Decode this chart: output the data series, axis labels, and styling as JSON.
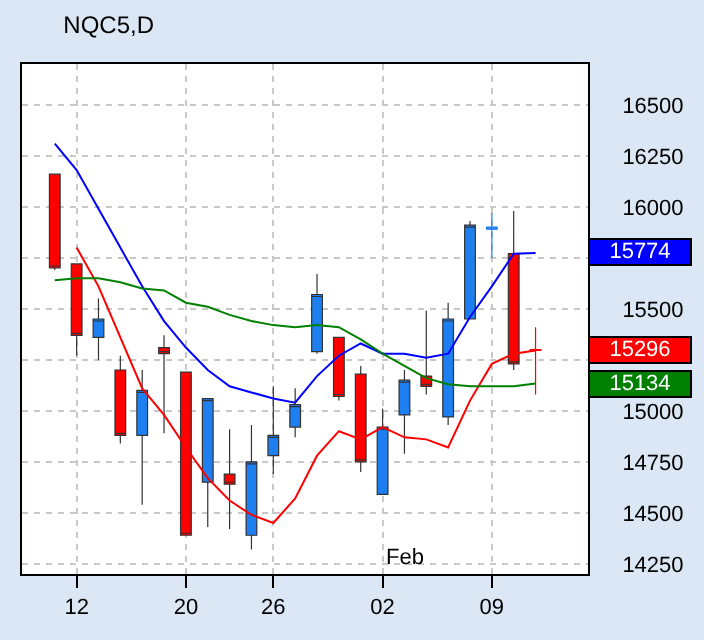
{
  "chart_data": {
    "type": "candlestick",
    "title": "NQC5,D",
    "categories": [
      null,
      "12",
      null,
      null,
      null,
      null,
      "20",
      null,
      null,
      null,
      "26",
      null,
      null,
      null,
      null,
      "02",
      null,
      null,
      null,
      null,
      "09",
      null,
      null
    ],
    "ohlc": [
      [
        16160,
        16160,
        15690,
        15700
      ],
      [
        15720,
        15720,
        15270,
        15370
      ],
      [
        15360,
        15550,
        15250,
        15450
      ],
      [
        15200,
        15270,
        14840,
        14880
      ],
      [
        14880,
        15200,
        14540,
        15100
      ],
      [
        15310,
        15370,
        14890,
        15280
      ],
      [
        15190,
        15190,
        14390,
        14390
      ],
      [
        14650,
        15060,
        14430,
        15060
      ],
      [
        14690,
        14910,
        14420,
        14640
      ],
      [
        14390,
        14930,
        14320,
        14750
      ],
      [
        14780,
        15120,
        14690,
        14880
      ],
      [
        14920,
        15110,
        14870,
        15030
      ],
      [
        15290,
        15670,
        15280,
        15570
      ],
      [
        15360,
        15360,
        15050,
        15070
      ],
      [
        15180,
        15220,
        14700,
        14750
      ],
      [
        14590,
        15010,
        14590,
        14920
      ],
      [
        14980,
        15200,
        14790,
        15150
      ],
      [
        15170,
        15490,
        15080,
        15120
      ],
      [
        14970,
        15530,
        14930,
        15450
      ],
      [
        15450,
        15930,
        15450,
        15910
      ],
      [
        15890,
        15970,
        15750,
        15900
      ],
      [
        15770,
        15980,
        15200,
        15230
      ],
      [
        15300,
        15410,
        15080,
        15296
      ]
    ],
    "colors": [
      "#ff0000",
      "#ff0000",
      "#1e7ff0",
      "#ff0000",
      "#1e7ff0",
      "#ff0000",
      "#ff0000",
      "#1e7ff0",
      "#ff0000",
      "#1e7ff0",
      "#1e7ff0",
      "#1e7ff0",
      "#1e7ff0",
      "#ff0000",
      "#ff0000",
      "#1e7ff0",
      "#1e7ff0",
      "#ff0000",
      "#1e7ff0",
      "#1e7ff0",
      "#1e7ff0",
      "#ff0000",
      "#ff0000"
    ],
    "series": [
      {
        "type": "line",
        "color": "#0000ff",
        "values": [
          16310,
          16180,
          15990,
          15800,
          15610,
          15440,
          15310,
          15200,
          15120,
          15090,
          15060,
          15040,
          15170,
          15270,
          15330,
          15280,
          15280,
          15260,
          15280,
          15460,
          15610,
          15770,
          15774
        ]
      },
      {
        "type": "line",
        "color": "#ff0000",
        "values": [
          null,
          15800,
          15610,
          15360,
          15110,
          14980,
          14820,
          14670,
          14560,
          14490,
          14450,
          14570,
          14780,
          14900,
          14860,
          14920,
          14870,
          14860,
          14820,
          15050,
          15230,
          15280,
          15296
        ]
      },
      {
        "type": "line",
        "color": "#008000",
        "values": [
          15640,
          15650,
          15650,
          15630,
          15600,
          15590,
          15530,
          15510,
          15470,
          15440,
          15420,
          15410,
          15420,
          15410,
          15350,
          15280,
          15220,
          15160,
          15130,
          15120,
          15120,
          15120,
          15134
        ]
      }
    ],
    "annotations": [
      "15774",
      "15296",
      "15134",
      "Feb"
    ],
    "ylim": [
      14200,
      16700
    ],
    "yticks": [
      14250,
      14500,
      14750,
      15000,
      {
        "value": 15250,
        "label": null
      },
      15500,
      {
        "value": 15750,
        "label": null
      },
      16000,
      16250,
      16500
    ],
    "grid": true
  }
}
